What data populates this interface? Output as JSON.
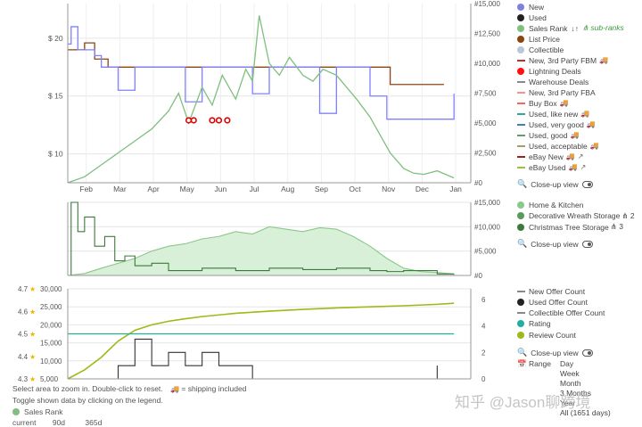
{
  "chart_data": [
    {
      "type": "line",
      "panel": "price-and-sales-rank",
      "x_ticks": [
        "Feb",
        "Mar",
        "Apr",
        "May",
        "Jun",
        "Jul",
        "Aug",
        "Sep",
        "Oct",
        "Nov",
        "Dec",
        "Jan"
      ],
      "left_axis": {
        "ticks": [
          "$ 10",
          "$ 15",
          "$ 20"
        ],
        "values": [
          10,
          15,
          20
        ],
        "range": [
          7.5,
          23
        ]
      },
      "right_axis": {
        "ticks": [
          "#0",
          "#2,500",
          "#5,000",
          "#7,500",
          "#10,000",
          "#12,500",
          "#15,000"
        ],
        "values": [
          0,
          2500,
          5000,
          7500,
          10000,
          12500,
          15000
        ],
        "range": [
          0,
          15000
        ]
      },
      "grid": true,
      "series": [
        {
          "name": "List Price",
          "color": "#8b4513",
          "x": [
            0,
            0.2,
            0.5,
            0.8,
            1.2,
            2.0,
            5.0,
            8.0,
            9.5,
            9.6,
            11.2
          ],
          "y": [
            19,
            19,
            19.6,
            18.2,
            17.5,
            17.5,
            17.5,
            17.5,
            17.5,
            16.0,
            16.0
          ]
        },
        {
          "name": "New",
          "color": "#8080ff",
          "x": [
            0,
            0.1,
            0.3,
            0.8,
            1.0,
            1.5,
            2.0,
            3.0,
            3.5,
            4.0,
            5.0,
            5.5,
            6.0,
            7.0,
            7.5,
            8.0,
            9.0,
            9.5,
            10.0,
            10.5,
            11.0,
            11.5
          ],
          "y": [
            19.5,
            21,
            19,
            18.5,
            17.5,
            15.5,
            17.5,
            17.5,
            14.5,
            17.5,
            17.5,
            15.2,
            17.5,
            17.5,
            13.5,
            17.5,
            15,
            13,
            13,
            13,
            13,
            15.2
          ]
        },
        {
          "name": "Sales Rank",
          "color": "#7fbf7f",
          "x": [
            0,
            0.5,
            1.0,
            1.5,
            2.0,
            2.5,
            3.0,
            3.3,
            3.6,
            4.0,
            4.3,
            4.6,
            5.0,
            5.3,
            5.5,
            5.7,
            6.0,
            6.3,
            6.6,
            7.0,
            7.3,
            7.6,
            8.0,
            8.3,
            8.6,
            9.0,
            9.3,
            9.6,
            10.0,
            10.3,
            10.6,
            11.0,
            11.5
          ],
          "y": [
            0,
            500,
            1500,
            2500,
            3500,
            4500,
            6000,
            7500,
            5000,
            8000,
            6500,
            9000,
            7000,
            9500,
            8500,
            14000,
            10000,
            9000,
            10500,
            9000,
            8500,
            9500,
            9000,
            8000,
            7000,
            5500,
            4000,
            2500,
            1200,
            800,
            700,
            1000,
            400
          ]
        },
        {
          "name": "Lightning Deals",
          "color": "#e00000",
          "x": [
            3.6,
            3.75,
            4.3,
            4.5,
            4.75
          ],
          "y": [
            12.9,
            12.9,
            12.9,
            12.9,
            12.9
          ]
        }
      ]
    },
    {
      "type": "area",
      "panel": "sales-rank-categories",
      "right_axis": {
        "ticks": [
          "#0",
          "#5,000",
          "#10,000",
          "#15,000"
        ],
        "values": [
          0,
          5000,
          10000,
          15000
        ],
        "range": [
          0,
          15000
        ]
      },
      "series": [
        {
          "name": "Home & Kitchen",
          "color": "#8bc88b",
          "x": [
            0,
            0.5,
            1.0,
            1.5,
            2.0,
            2.5,
            3.0,
            3.5,
            4.0,
            4.5,
            5.0,
            5.5,
            6.0,
            6.5,
            7.0,
            7.5,
            8.0,
            8.5,
            9.0,
            9.5,
            10.0,
            10.5,
            11.0,
            11.5
          ],
          "y": [
            0,
            400,
            1500,
            2500,
            3500,
            5000,
            6000,
            6500,
            7500,
            8000,
            9000,
            8500,
            10000,
            9500,
            9000,
            9800,
            9500,
            8000,
            6000,
            3500,
            1500,
            800,
            600,
            300
          ]
        },
        {
          "name": "Christmas Tree Storage",
          "color": "#3c7a3c",
          "x": [
            0,
            0.1,
            0.3,
            0.5,
            0.8,
            1.1,
            1.4,
            1.7,
            2.0,
            2.5,
            3.0,
            4.0,
            5.0,
            6.0,
            7.0,
            8.0,
            9.0,
            9.5,
            10.0,
            11.0,
            11.5
          ],
          "y": [
            0,
            15000,
            9000,
            12000,
            6000,
            8000,
            3000,
            4000,
            2000,
            2500,
            1000,
            1500,
            1000,
            1500,
            1200,
            1500,
            1000,
            800,
            1000,
            300,
            300
          ]
        }
      ]
    },
    {
      "type": "line",
      "panel": "offers-and-rating",
      "left_axis_outer": {
        "ticks": [
          "4.3",
          "4.4",
          "4.5",
          "4.6",
          "4.7"
        ],
        "values": [
          4.3,
          4.4,
          4.5,
          4.6,
          4.7
        ]
      },
      "left_axis_inner": {
        "ticks": [
          "5,000",
          "10,000",
          "15,000",
          "20,000",
          "25,000",
          "30,000"
        ],
        "values": [
          5000,
          10000,
          15000,
          20000,
          25000,
          30000
        ],
        "range": [
          5000,
          30000
        ]
      },
      "right_axis": {
        "ticks": [
          "0",
          "2",
          "4",
          "6"
        ],
        "values": [
          0,
          2,
          4,
          6
        ],
        "range": [
          0,
          6.8
        ]
      },
      "series": [
        {
          "name": "Review Count",
          "color": "#a0b818",
          "x": [
            0,
            0.5,
            1.0,
            1.5,
            2.0,
            2.5,
            3.0,
            3.5,
            4.0,
            5.0,
            6.0,
            7.0,
            8.0,
            9.0,
            10.0,
            11.0,
            11.5
          ],
          "y": [
            5000,
            7500,
            11000,
            15500,
            18500,
            20000,
            21000,
            21700,
            22300,
            23200,
            23800,
            24300,
            24700,
            25000,
            25300,
            25700,
            26000
          ]
        },
        {
          "name": "Rating",
          "color": "#20b0a0",
          "x": [
            0,
            11.5
          ],
          "y": [
            4.5,
            4.5
          ]
        },
        {
          "name": "Used Offer Count",
          "color": "#333333",
          "x": [
            1.0,
            1.5,
            2.0,
            2.5,
            3.0,
            3.5,
            4.0,
            4.5,
            5.0,
            5.5,
            11.0
          ],
          "y": [
            0,
            1,
            3,
            1,
            2,
            1,
            2,
            1,
            1,
            0,
            1
          ]
        }
      ]
    }
  ],
  "legend_top": [
    {
      "label": "New",
      "kind": "dot",
      "color": "#8080e0"
    },
    {
      "label": "Used",
      "kind": "dot",
      "color": "#222222"
    },
    {
      "label": "Sales Rank",
      "kind": "dot",
      "color": "#7fbf7f",
      "sort_icon": "↓↑",
      "sub": "sub-ranks"
    },
    {
      "label": "List Price",
      "kind": "dot",
      "color": "#8b4513"
    },
    {
      "label": "Collectible",
      "kind": "dot",
      "color": "#b8c8d8"
    },
    {
      "label": "New, 3rd Party FBM",
      "kind": "dash",
      "color": "#c03030",
      "truck": true
    },
    {
      "label": "Lightning Deals",
      "kind": "dot",
      "color": "#ff1010"
    },
    {
      "label": "Warehouse Deals",
      "kind": "dash",
      "color": "#888888"
    },
    {
      "label": "New, 3rd Party FBA",
      "kind": "dash",
      "color": "#ff9090"
    },
    {
      "label": "Buy Box",
      "kind": "dash",
      "color": "#ff6060",
      "truck": true
    },
    {
      "label": "Used, like new",
      "kind": "dash",
      "color": "#40a0a0",
      "truck": true
    },
    {
      "label": "Used, very good",
      "kind": "dash",
      "color": "#4080c0",
      "truck": true
    },
    {
      "label": "Used, good",
      "kind": "dash",
      "color": "#6a9a6a",
      "truck": true
    },
    {
      "label": "Used, acceptable",
      "kind": "dash",
      "color": "#a0a060",
      "truck": true
    },
    {
      "label": "eBay New",
      "kind": "dash",
      "color": "#a02020",
      "truck": true,
      "ext": true
    },
    {
      "label": "eBay Used",
      "kind": "dash",
      "color": "#a0c040",
      "truck": true,
      "ext": true
    }
  ],
  "legend_mid": [
    {
      "label": "Home & Kitchen",
      "kind": "dot",
      "color": "#8bc88b"
    },
    {
      "label": "Decorative Wreath Storage",
      "kind": "dot",
      "color": "#5a9a5a",
      "count": "2"
    },
    {
      "label": "Christmas Tree Storage",
      "kind": "dot",
      "color": "#3c7a3c",
      "count": "3"
    }
  ],
  "legend_bottom": [
    {
      "label": "New Offer Count",
      "kind": "dash",
      "color": "#888888"
    },
    {
      "label": "Used Offer Count",
      "kind": "dot",
      "color": "#222222"
    },
    {
      "label": "Collectible Offer Count",
      "kind": "dash",
      "color": "#888888"
    },
    {
      "label": "Rating",
      "kind": "dot",
      "color": "#20b0a0"
    },
    {
      "label": "Review Count",
      "kind": "dot",
      "color": "#a0b818"
    }
  ],
  "closeup_label": "Close-up view",
  "range_label": "Range",
  "range_options": [
    "Day",
    "Week",
    "Month",
    "3 Months",
    "Year",
    "All (1651 days)"
  ],
  "footer": {
    "line1": "Select area to zoom in. Double-click to reset.",
    "shipping_note": "= shipping included",
    "line2": "Toggle shown data by clicking on the legend.",
    "sales_rank_label": "Sales Rank",
    "stats": [
      "current",
      "90d",
      "365d"
    ]
  },
  "watermark": "知乎 @Jason聊跨境"
}
